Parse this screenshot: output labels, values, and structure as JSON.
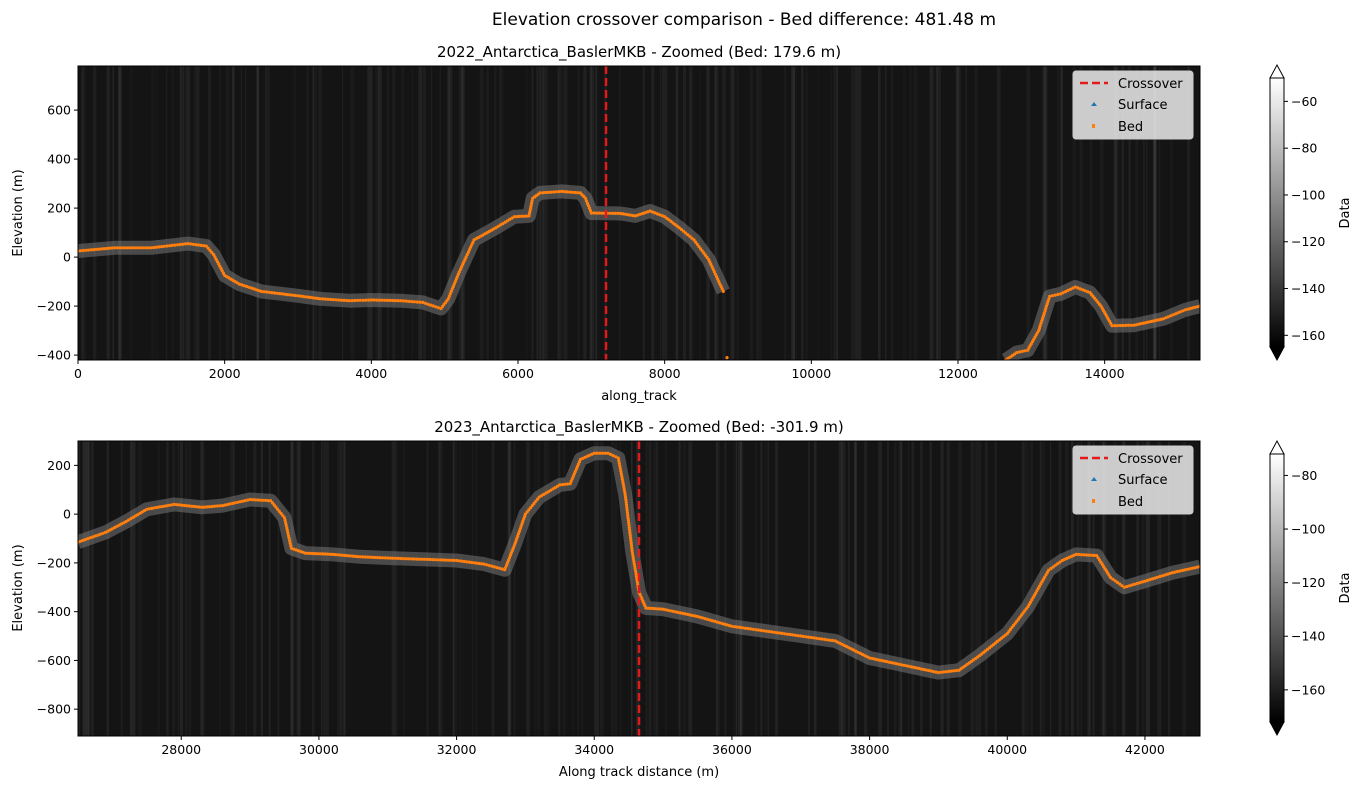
{
  "suptitle": "Elevation crossover comparison - Bed difference: 481.48 m",
  "chart_data": [
    {
      "type": "radargram",
      "title": "2022_Antarctica_BaslerMKB - Zoomed (Bed: 179.6 m)",
      "xlabel": "along_track",
      "ylabel": "Elevation (m)",
      "xlim": [
        0,
        15300
      ],
      "ylim": [
        -420,
        780
      ],
      "xticks": [
        0,
        2000,
        4000,
        6000,
        8000,
        10000,
        12000,
        14000
      ],
      "yticks": [
        -400,
        -200,
        0,
        200,
        400,
        600
      ],
      "crossover_x": 7200,
      "legend": {
        "position": "top-right",
        "crossover": "Crossover",
        "surface": "Surface",
        "bed": "Bed"
      },
      "colorbar": {
        "label": "Data",
        "range": [
          -165,
          -50
        ],
        "ticks": [
          -160,
          -140,
          -120,
          -100,
          -80,
          -60
        ]
      },
      "bed_segments": [
        [
          [
            0,
            25
          ],
          [
            500,
            38
          ],
          [
            1000,
            38
          ],
          [
            1500,
            55
          ],
          [
            1750,
            45
          ],
          [
            1850,
            10
          ],
          [
            2000,
            -75
          ],
          [
            2200,
            -110
          ],
          [
            2500,
            -140
          ],
          [
            3000,
            -158
          ],
          [
            3300,
            -170
          ],
          [
            3700,
            -178
          ],
          [
            4000,
            -175
          ],
          [
            4400,
            -178
          ],
          [
            4700,
            -185
          ],
          [
            4950,
            -210
          ],
          [
            5050,
            -170
          ],
          [
            5200,
            -60
          ],
          [
            5400,
            70
          ],
          [
            5700,
            120
          ],
          [
            5950,
            165
          ],
          [
            6150,
            168
          ],
          [
            6200,
            240
          ],
          [
            6300,
            262
          ],
          [
            6600,
            268
          ],
          [
            6850,
            262
          ],
          [
            6920,
            240
          ],
          [
            7000,
            180
          ],
          [
            7400,
            178
          ],
          [
            7600,
            168
          ],
          [
            7800,
            188
          ],
          [
            8000,
            165
          ],
          [
            8200,
            120
          ],
          [
            8400,
            70
          ],
          [
            8600,
            -10
          ],
          [
            8800,
            -140
          ]
        ],
        [
          [
            8850,
            -410
          ]
        ],
        [
          [
            12650,
            -420
          ],
          [
            12800,
            -390
          ],
          [
            12950,
            -380
          ],
          [
            13100,
            -300
          ],
          [
            13250,
            -160
          ],
          [
            13400,
            -150
          ],
          [
            13600,
            -122
          ],
          [
            13800,
            -145
          ],
          [
            13950,
            -200
          ],
          [
            14100,
            -280
          ],
          [
            14400,
            -278
          ],
          [
            14800,
            -252
          ],
          [
            15100,
            -215
          ],
          [
            15300,
            -200
          ]
        ]
      ]
    },
    {
      "type": "radargram",
      "title": "2023_Antarctica_BaslerMKB - Zoomed (Bed: -301.9 m)",
      "xlabel": "Along track distance (m)",
      "ylabel": "Elevation (m)",
      "xlim": [
        26500,
        42800
      ],
      "ylim": [
        -910,
        300
      ],
      "xticks": [
        28000,
        30000,
        32000,
        34000,
        36000,
        38000,
        40000,
        42000
      ],
      "yticks": [
        -800,
        -600,
        -400,
        -200,
        0,
        200
      ],
      "crossover_x": 34650,
      "legend": {
        "position": "top-right",
        "crossover": "Crossover",
        "surface": "Surface",
        "bed": "Bed"
      },
      "colorbar": {
        "label": "Data",
        "range": [
          -172,
          -72
        ],
        "ticks": [
          -160,
          -140,
          -120,
          -100,
          -80
        ]
      },
      "bed_segments": [
        [
          [
            26500,
            -115
          ],
          [
            26900,
            -75
          ],
          [
            27200,
            -30
          ],
          [
            27500,
            20
          ],
          [
            27900,
            40
          ],
          [
            28300,
            28
          ],
          [
            28600,
            35
          ],
          [
            29000,
            60
          ],
          [
            29300,
            55
          ],
          [
            29500,
            -15
          ],
          [
            29600,
            -140
          ],
          [
            29800,
            -160
          ],
          [
            30200,
            -165
          ],
          [
            30600,
            -175
          ],
          [
            31000,
            -180
          ],
          [
            31500,
            -185
          ],
          [
            32000,
            -190
          ],
          [
            32400,
            -205
          ],
          [
            32700,
            -228
          ],
          [
            32850,
            -120
          ],
          [
            33000,
            0
          ],
          [
            33200,
            70
          ],
          [
            33500,
            120
          ],
          [
            33650,
            125
          ],
          [
            33800,
            225
          ],
          [
            34000,
            250
          ],
          [
            34200,
            250
          ],
          [
            34350,
            230
          ],
          [
            34450,
            80
          ],
          [
            34550,
            -150
          ],
          [
            34650,
            -320
          ],
          [
            34750,
            -385
          ],
          [
            35000,
            -390
          ],
          [
            35500,
            -420
          ],
          [
            36000,
            -460
          ],
          [
            36500,
            -480
          ],
          [
            37000,
            -500
          ],
          [
            37500,
            -520
          ],
          [
            38000,
            -590
          ],
          [
            38500,
            -620
          ],
          [
            39000,
            -650
          ],
          [
            39300,
            -640
          ],
          [
            39600,
            -580
          ],
          [
            40000,
            -490
          ],
          [
            40300,
            -380
          ],
          [
            40600,
            -230
          ],
          [
            40800,
            -190
          ],
          [
            41000,
            -165
          ],
          [
            41300,
            -170
          ],
          [
            41500,
            -260
          ],
          [
            41700,
            -300
          ],
          [
            42000,
            -275
          ],
          [
            42400,
            -240
          ],
          [
            42800,
            -215
          ]
        ]
      ]
    }
  ]
}
